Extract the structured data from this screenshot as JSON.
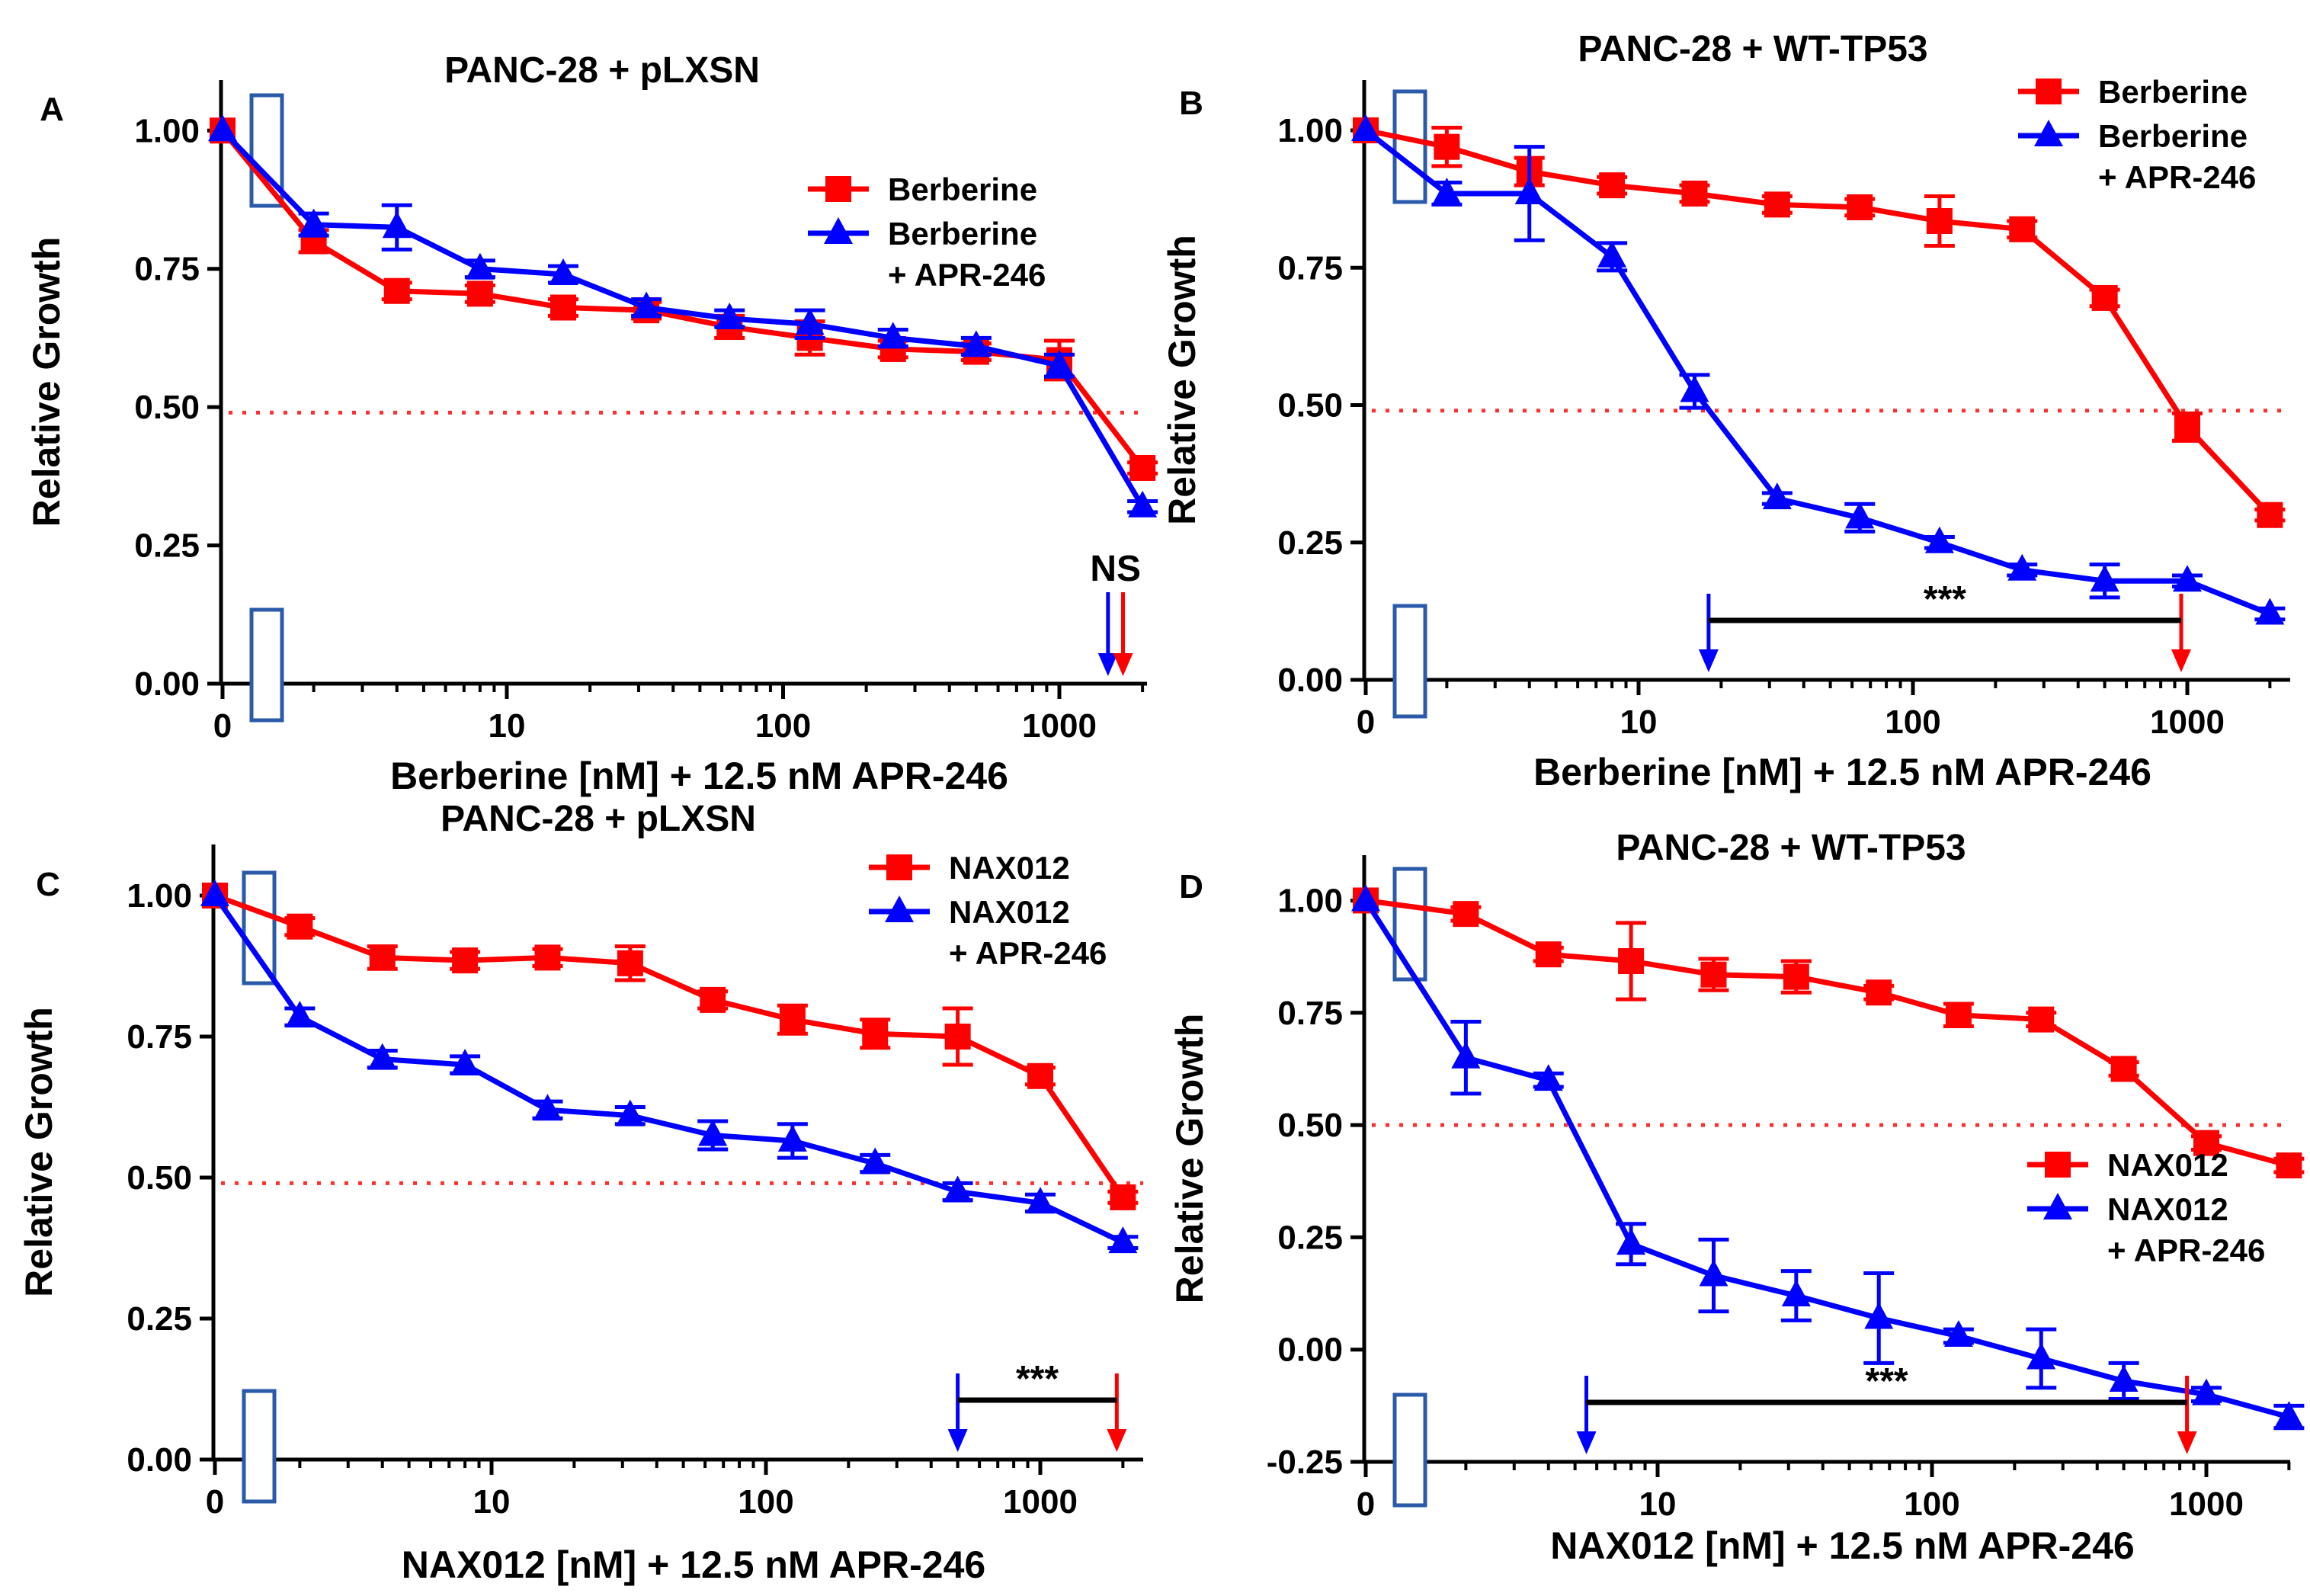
{
  "chart_data": [
    {
      "type": "line",
      "panel_label": "A",
      "title": "PANC-28 + pLXSN",
      "xlabel": "Berberine [nM] + 12.5 nM APR-246",
      "ylabel": "Relative Growth",
      "x_scale": "log",
      "x_ticks": [
        "0",
        "10",
        "100",
        "1000"
      ],
      "y_ticks": [
        "0.00",
        "0.25",
        "0.50",
        "0.75",
        "1.00"
      ],
      "ylim": [
        0,
        1.05
      ],
      "reference_line": 0.49,
      "legend_position": "top-right",
      "x": [
        0,
        2,
        4,
        8,
        16,
        32,
        64,
        125,
        250,
        500,
        1000,
        2000
      ],
      "series": [
        {
          "name_lines": [
            "Berberine"
          ],
          "color": "#ff0000",
          "marker": "square",
          "values": [
            1.0,
            0.8,
            0.71,
            0.705,
            0.68,
            0.675,
            0.645,
            0.625,
            0.605,
            0.6,
            0.585,
            0.39
          ],
          "errors": [
            0,
            0.02,
            0.015,
            0.015,
            0.015,
            0.015,
            0.02,
            0.03,
            0.015,
            0.015,
            0.035,
            0.01
          ]
        },
        {
          "name_lines": [
            "Berberine",
            "+ APR-246"
          ],
          "color": "#0000ff",
          "marker": "triangle",
          "values": [
            1.0,
            0.83,
            0.825,
            0.75,
            0.74,
            0.68,
            0.66,
            0.65,
            0.625,
            0.61,
            0.575,
            0.32
          ],
          "errors": [
            0,
            0.02,
            0.04,
            0.015,
            0.015,
            0.015,
            0.015,
            0.025,
            0.015,
            0.015,
            0.02,
            0.01
          ]
        }
      ],
      "annotation": {
        "label": "NS",
        "blue_arrow_x": 1500,
        "red_arrow_x": 1700,
        "bracket": false
      }
    },
    {
      "type": "line",
      "panel_label": "B",
      "title": "PANC-28 + WT-TP53",
      "xlabel": "Berberine [nM] + 12.5 nM APR-246",
      "ylabel": "Relative Growth",
      "x_scale": "log",
      "x_ticks": [
        "0",
        "10",
        "100",
        "1000"
      ],
      "y_ticks": [
        "0.00",
        "0.25",
        "0.50",
        "0.75",
        "1.00"
      ],
      "ylim": [
        0,
        1.05
      ],
      "reference_line": 0.49,
      "legend_position": "top-right",
      "x": [
        0,
        2,
        4,
        8,
        16,
        32,
        64,
        125,
        250,
        500,
        1000,
        2000
      ],
      "series": [
        {
          "name_lines": [
            "Berberine"
          ],
          "color": "#ff0000",
          "marker": "square",
          "values": [
            1.0,
            0.97,
            0.925,
            0.9,
            0.885,
            0.865,
            0.86,
            0.835,
            0.82,
            0.695,
            0.46,
            0.3
          ],
          "errors": [
            0,
            0.035,
            0.025,
            0.015,
            0.015,
            0.015,
            0.015,
            0.045,
            0.015,
            0.015,
            0.025,
            0.01
          ]
        },
        {
          "name_lines": [
            "Berberine",
            "+ APR-246"
          ],
          "color": "#0000ff",
          "marker": "triangle",
          "values": [
            1.0,
            0.885,
            0.885,
            0.77,
            0.525,
            0.33,
            0.295,
            0.25,
            0.2,
            0.18,
            0.18,
            0.12
          ],
          "errors": [
            0,
            0.02,
            0.085,
            0.025,
            0.03,
            0.01,
            0.025,
            0.01,
            0.01,
            0.03,
            0.01,
            0.01
          ]
        }
      ],
      "annotation": {
        "label": "***",
        "blue_arrow_x": 18,
        "red_arrow_x": 950,
        "bracket": true
      }
    },
    {
      "type": "line",
      "panel_label": "C",
      "title": "PANC-28 + pLXSN",
      "xlabel": "NAX012 [nM] + 12.5 nM APR-246",
      "ylabel": "Relative Growth",
      "x_scale": "log",
      "x_ticks": [
        "0",
        "10",
        "100",
        "1000"
      ],
      "y_ticks": [
        "0.00",
        "0.25",
        "0.50",
        "0.75",
        "1.00"
      ],
      "ylim": [
        0,
        1.05
      ],
      "reference_line": 0.49,
      "legend_position": "top-right",
      "x": [
        0,
        2,
        4,
        8,
        16,
        32,
        64,
        125,
        250,
        500,
        1000,
        2000
      ],
      "series": [
        {
          "name_lines": [
            "NAX012"
          ],
          "color": "#ff0000",
          "marker": "square",
          "values": [
            1.0,
            0.945,
            0.89,
            0.885,
            0.89,
            0.88,
            0.815,
            0.78,
            0.755,
            0.75,
            0.68,
            0.465
          ],
          "errors": [
            0,
            0.015,
            0.02,
            0.015,
            0.015,
            0.03,
            0.015,
            0.025,
            0.025,
            0.05,
            0.015,
            0.01
          ]
        },
        {
          "name_lines": [
            "NAX012",
            "+ APR-246"
          ],
          "color": "#0000ff",
          "marker": "triangle",
          "values": [
            1.0,
            0.785,
            0.71,
            0.7,
            0.62,
            0.61,
            0.575,
            0.565,
            0.525,
            0.475,
            0.455,
            0.385
          ],
          "errors": [
            0,
            0.015,
            0.015,
            0.015,
            0.015,
            0.015,
            0.025,
            0.03,
            0.015,
            0.015,
            0.015,
            0.01
          ]
        }
      ],
      "annotation": {
        "label": "***",
        "blue_arrow_x": 500,
        "red_arrow_x": 1900,
        "bracket": true
      }
    },
    {
      "type": "line",
      "panel_label": "D",
      "title": "PANC-28 + WT-TP53",
      "xlabel": "NAX012 [nM] + 12.5 nM APR-246",
      "ylabel": "Relative Growth",
      "x_scale": "log",
      "x_ticks": [
        "0",
        "10",
        "100",
        "1000"
      ],
      "y_ticks": [
        "-0.25",
        "0.00",
        "0.25",
        "0.50",
        "0.75",
        "1.00"
      ],
      "ylim": [
        -0.25,
        1.05
      ],
      "reference_line": 0.5,
      "legend_position": "right",
      "x": [
        0,
        2,
        4,
        8,
        16,
        32,
        64,
        125,
        250,
        500,
        1000,
        2000
      ],
      "series": [
        {
          "name_lines": [
            "NAX012"
          ],
          "color": "#ff0000",
          "marker": "square",
          "values": [
            1.0,
            0.97,
            0.88,
            0.865,
            0.835,
            0.83,
            0.795,
            0.745,
            0.735,
            0.625,
            0.46,
            0.41
          ],
          "errors": [
            0,
            0.015,
            0.015,
            0.085,
            0.035,
            0.035,
            0.015,
            0.025,
            0.015,
            0.015,
            0.015,
            0.015
          ]
        },
        {
          "name_lines": [
            "NAX012",
            "+ APR-246"
          ],
          "color": "#0000ff",
          "marker": "triangle",
          "values": [
            1.0,
            0.65,
            0.6,
            0.235,
            0.165,
            0.12,
            0.07,
            0.03,
            -0.02,
            -0.07,
            -0.1,
            -0.15
          ],
          "errors": [
            0,
            0.08,
            0.015,
            0.045,
            0.08,
            0.055,
            0.1,
            0.015,
            0.065,
            0.04,
            0.015,
            0.025
          ]
        }
      ],
      "annotation": {
        "label": "***",
        "blue_arrow_x": 5.5,
        "red_arrow_x": 850,
        "bracket": true
      }
    }
  ]
}
